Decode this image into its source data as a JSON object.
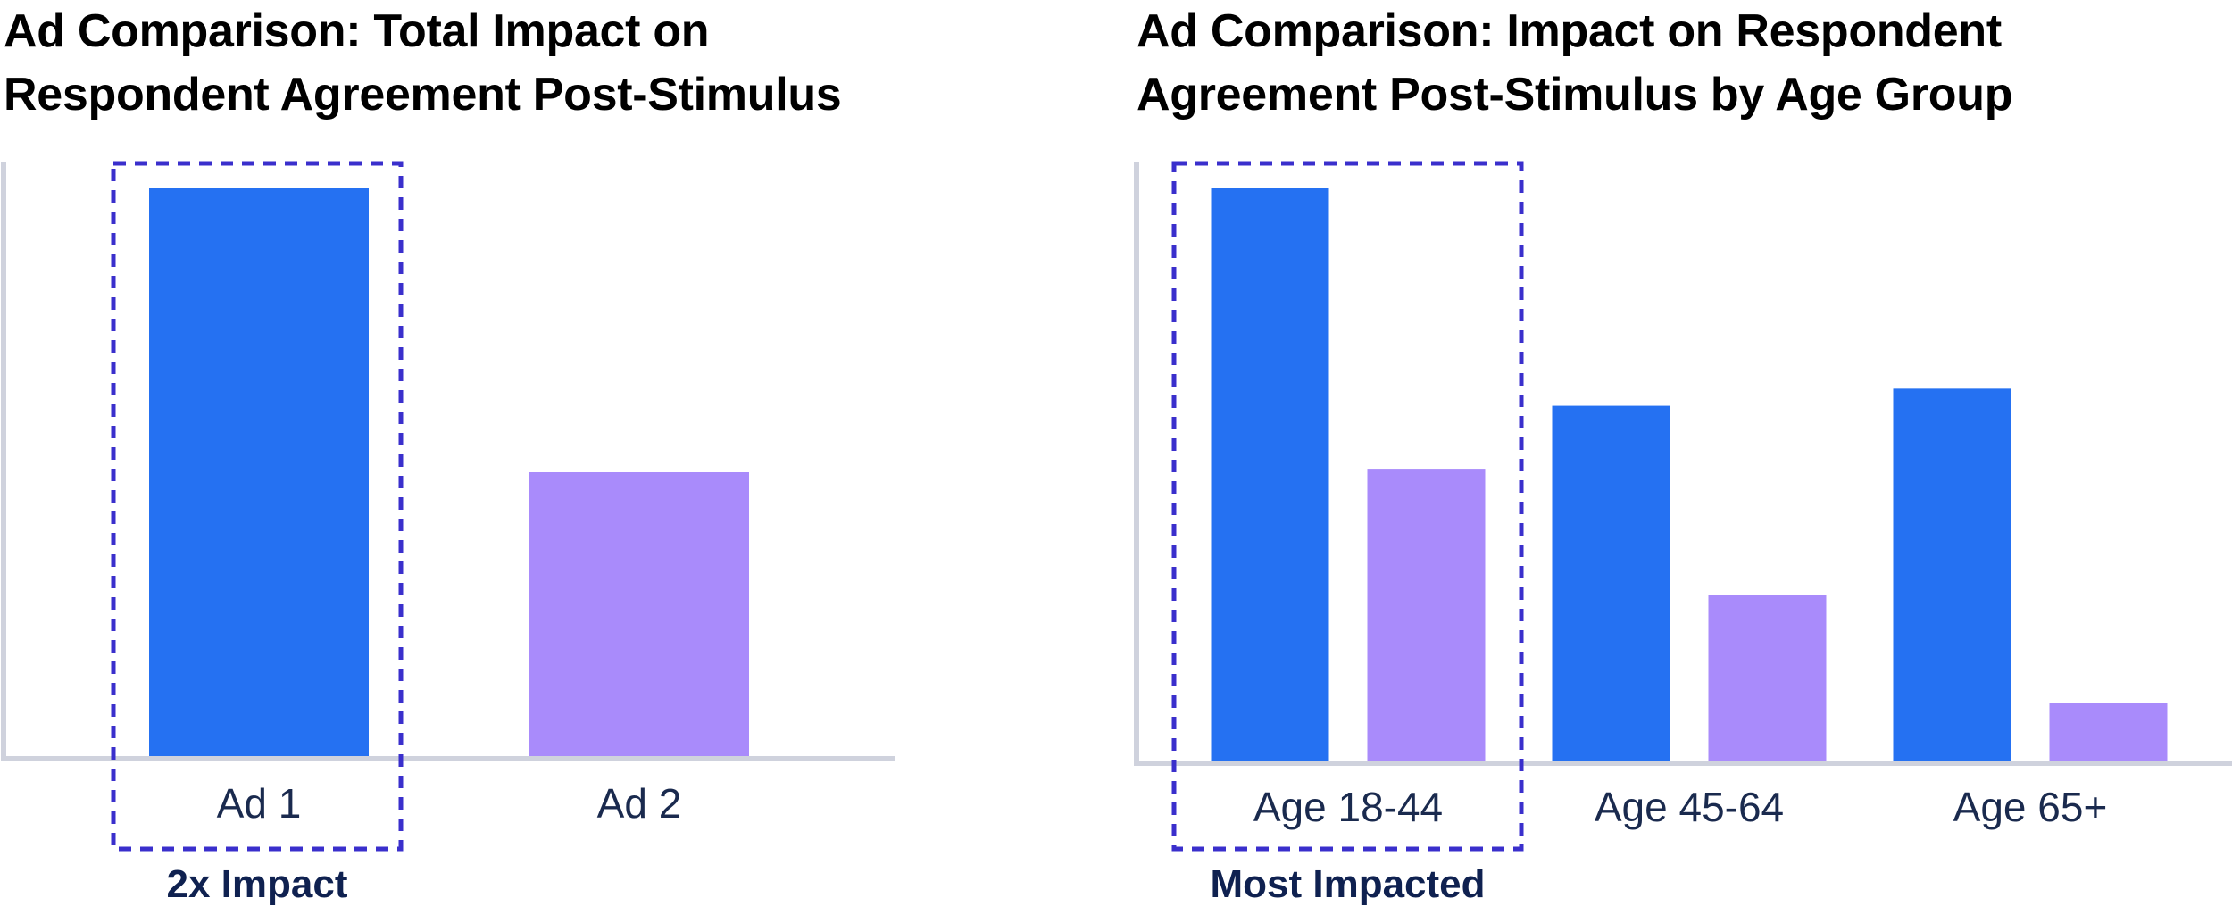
{
  "colors": {
    "ad1": "#2571f2",
    "ad2": "#a98bfb",
    "axis": "#cfd2dd",
    "highlight": "#3a2fcc",
    "tick_text": "#1a2a4e",
    "callout_text": "#0f2150"
  },
  "chart_data": [
    {
      "type": "bar",
      "title": "Ad Comparison: Total Impact on Respondent Agreement Post-Stimulus",
      "categories": [
        "Ad 1",
        "Ad 2"
      ],
      "series": [
        {
          "values": [
            100,
            50
          ],
          "colors": [
            "#2571f2",
            "#a98bfb"
          ]
        }
      ],
      "ylim": [
        0,
        105
      ],
      "grid": false,
      "highlight": {
        "category": "Ad 1",
        "label": "2x Impact"
      }
    },
    {
      "type": "bar",
      "title": "Ad Comparison: Impact on Respondent Agreement Post-Stimulus by Age Group",
      "categories": [
        "Age 18-44",
        "Age 45-64",
        "Age 65+"
      ],
      "series": [
        {
          "values": [
            100,
            62,
            65
          ],
          "color": "#2571f2"
        },
        {
          "values": [
            51,
            29,
            10
          ],
          "color": "#a98bfb"
        }
      ],
      "ylim": [
        0,
        105
      ],
      "grid": false,
      "highlight": {
        "category": "Age 18-44",
        "label": "Most Impacted"
      }
    }
  ]
}
